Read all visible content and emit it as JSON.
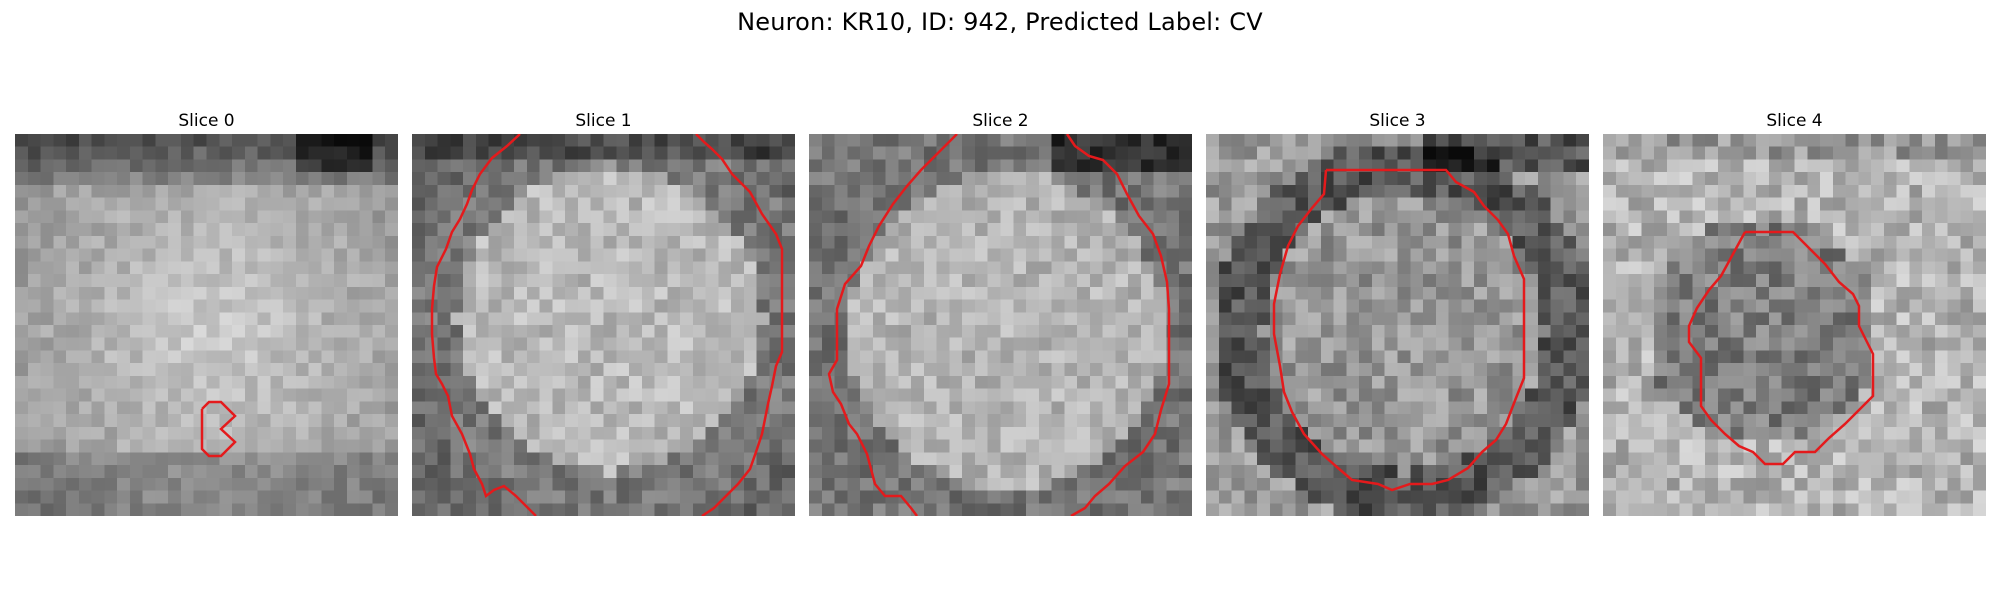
{
  "figure": {
    "title": "Neuron: KR10, ID: 942, Predicted Label: CV"
  },
  "panels": [
    {
      "label": "Slice 0"
    },
    {
      "label": "Slice 1"
    },
    {
      "label": "Slice 2"
    },
    {
      "label": "Slice 3"
    },
    {
      "label": "Slice 4"
    }
  ],
  "colors": {
    "contour": "#e41a1c",
    "background": "#ffffff"
  },
  "image_style": "grayscale microscopy tiles with red segmentation contour"
}
